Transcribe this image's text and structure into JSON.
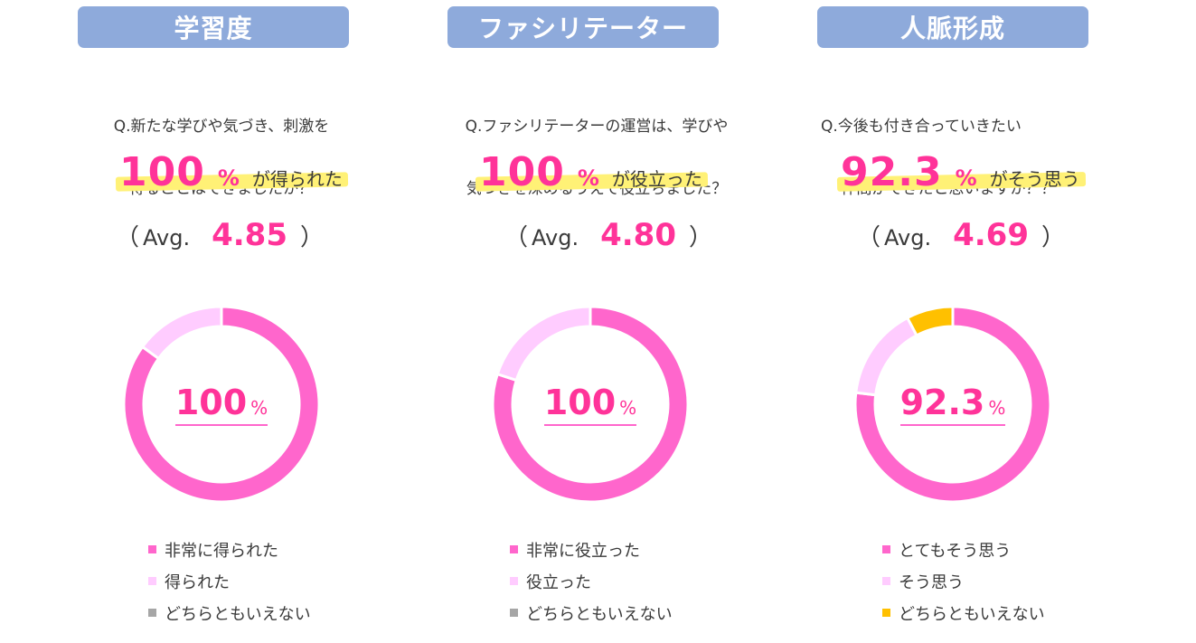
{
  "chart_data": [
    {
      "type": "pie",
      "title": "学習度",
      "question_lines": [
        "Q.新たな学びや気づき、刺激を",
        "得ることはできましたか？"
      ],
      "headline_value": "100",
      "headline_unit": "%",
      "headline_text": "が得られた",
      "avg_open": "（",
      "avg_label": "Avg.",
      "avg_value": "4.85",
      "avg_close": "）",
      "center_value": "100",
      "center_unit": "%",
      "categories": [
        "非常に得られた",
        "得られた",
        "どちらともいえない"
      ],
      "values": [
        85,
        15,
        0
      ],
      "colors": [
        "#ff66cc",
        "#ffccff",
        "#a6a6a6"
      ]
    },
    {
      "type": "pie",
      "title": "ファシリテーター",
      "question_lines": [
        "Q.ファシリテーターの運営は、学びや",
        "気づきを深めるうえで役立ちました？"
      ],
      "headline_value": "100",
      "headline_unit": "%",
      "headline_text": "が役立った",
      "avg_open": "（",
      "avg_label": "Avg.",
      "avg_value": "4.80",
      "avg_close": "）",
      "center_value": "100",
      "center_unit": "%",
      "categories": [
        "非常に役立った",
        "役立った",
        "どちらともいえない"
      ],
      "values": [
        80,
        20,
        0
      ],
      "colors": [
        "#ff66cc",
        "#ffccff",
        "#a6a6a6"
      ]
    },
    {
      "type": "pie",
      "title": "人脈形成",
      "question_lines": [
        "Q.今後も付き合っていきたい",
        "　 仲間ができたと思いますか？？"
      ],
      "headline_value": "92.3",
      "headline_unit": "%",
      "headline_text": "がそう思う",
      "avg_open": "（",
      "avg_label": "Avg.",
      "avg_value": "4.69",
      "avg_close": "）",
      "center_value": "92.3",
      "center_unit": "%",
      "categories": [
        "とてもそう思う",
        "そう思う",
        "どちらともいえない"
      ],
      "values": [
        76.9,
        15.4,
        7.7
      ],
      "colors": [
        "#ff66cc",
        "#ffccff",
        "#ffc000"
      ]
    }
  ]
}
